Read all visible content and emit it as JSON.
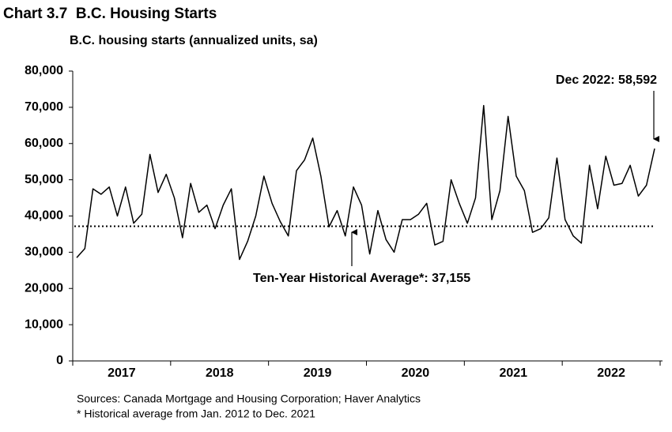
{
  "chart_data": {
    "type": "line",
    "title": "Chart 3.7  B.C. Housing Starts",
    "subtitle": "B.C. housing starts (annualized units, sa)",
    "year_labels": [
      "2017",
      "2018",
      "2019",
      "2020",
      "2021",
      "2022"
    ],
    "series": [
      {
        "color": "#000000",
        "values": [
          28500,
          31000,
          47500,
          46000,
          48000,
          40000,
          48000,
          38000,
          40500,
          57000,
          46500,
          51500,
          45000,
          34000,
          49000,
          41000,
          43000,
          36500,
          43000,
          47500,
          28000,
          33000,
          40000,
          51000,
          43500,
          38500,
          34500,
          52500,
          55500,
          61500,
          51000,
          37000,
          41500,
          34500,
          48000,
          43000,
          29500,
          41500,
          33500,
          30000,
          39000,
          39000,
          40500,
          43500,
          32000,
          33000,
          50000,
          43500,
          38000,
          45000,
          70500,
          39000,
          47000,
          67500,
          51000,
          47000,
          35500,
          36500,
          39500,
          56000,
          39000,
          34500,
          32500,
          54000,
          42000,
          56500,
          48500,
          49000,
          54000,
          45500,
          48500,
          58592
        ]
      }
    ],
    "average": 37155,
    "average_color": "#000000",
    "ylim": [
      0,
      80000
    ],
    "yticks": [
      0,
      {
        "value": 10000,
        "label": "10,000"
      },
      {
        "value": 20000,
        "label": "20,000"
      },
      {
        "value": 30000,
        "label": "30,000"
      },
      {
        "value": 40000,
        "label": "40,000"
      },
      {
        "value": 50000,
        "label": "50,000"
      },
      {
        "value": 60000,
        "label": "60,000"
      },
      {
        "value": 70000,
        "label": "70,000"
      },
      {
        "value": 80000,
        "label": "80,000"
      }
    ],
    "annotations": [
      "Dec 2022: 58,592",
      "Ten-Year Historical Average*: 37,155"
    ],
    "sources": [
      "Sources: Canada Mortgage and Housing Corporation; Haver Analytics",
      "* Historical average from Jan. 2012 to Dec. 2021"
    ]
  }
}
